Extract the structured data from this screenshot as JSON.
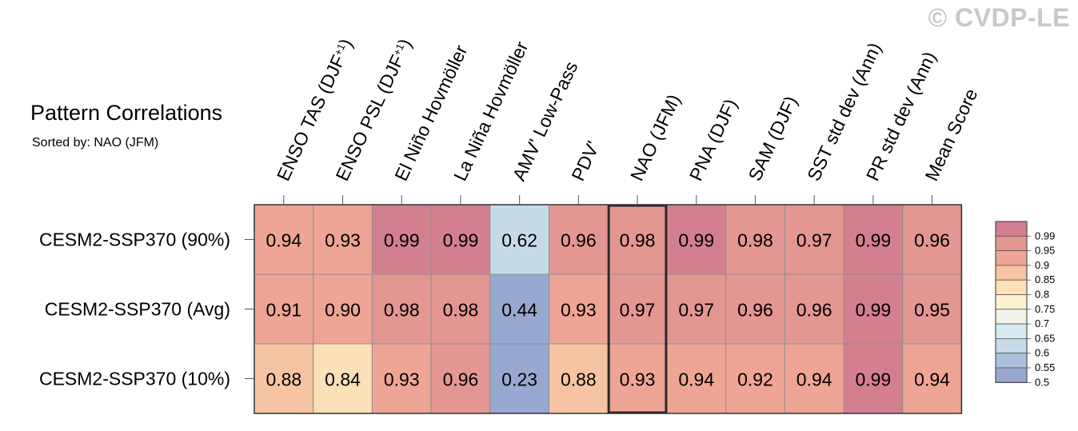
{
  "watermark": "© CVDP-LE",
  "chart_data": {
    "type": "heatmap",
    "title": "Pattern Correlations",
    "subtitle": "Sorted by: NAO (JFM)",
    "columns": [
      "ENSO TAS (DJF+1)",
      "ENSO PSL (DJF+1)",
      "El Niño Hovmöller",
      "La Niña Hovmöller",
      "AMV' Low-Pass",
      "PDV'",
      "NAO (JFM)",
      "PNA (DJF)",
      "SAM (DJF)",
      "SST std dev (Ann)",
      "PR std dev (Ann)",
      "Mean Score"
    ],
    "rows": [
      {
        "name": "CESM2-SSP370 (90%)",
        "values": [
          "0.94",
          "0.93",
          "0.99",
          "0.99",
          "0.62",
          "0.96",
          "0.98",
          "0.99",
          "0.98",
          "0.97",
          "0.99",
          "0.96"
        ]
      },
      {
        "name": "CESM2-SSP370 (Avg)",
        "values": [
          "0.91",
          "0.90",
          "0.98",
          "0.98",
          "0.44",
          "0.93",
          "0.97",
          "0.97",
          "0.96",
          "0.96",
          "0.99",
          "0.95"
        ]
      },
      {
        "name": "CESM2-SSP370 (10%)",
        "values": [
          "0.88",
          "0.84",
          "0.93",
          "0.96",
          "0.23",
          "0.88",
          "0.93",
          "0.94",
          "0.92",
          "0.94",
          "0.99",
          "0.94"
        ]
      }
    ],
    "highlighted_column": "NAO (JFM)",
    "colorbar": {
      "labels": [
        "0.99",
        "0.95",
        "0.9",
        "0.85",
        "0.8",
        "0.75",
        "0.7",
        "0.65",
        "0.6",
        "0.55",
        "0.5"
      ],
      "colors": [
        "#d47f8f",
        "#e49692",
        "#eea595",
        "#f6c4a2",
        "#fbe0b8",
        "#fcf2d2",
        "#f1f3ea",
        "#d6ebf1",
        "#c7dae8",
        "#adc1de",
        "#99a8d1"
      ]
    }
  }
}
